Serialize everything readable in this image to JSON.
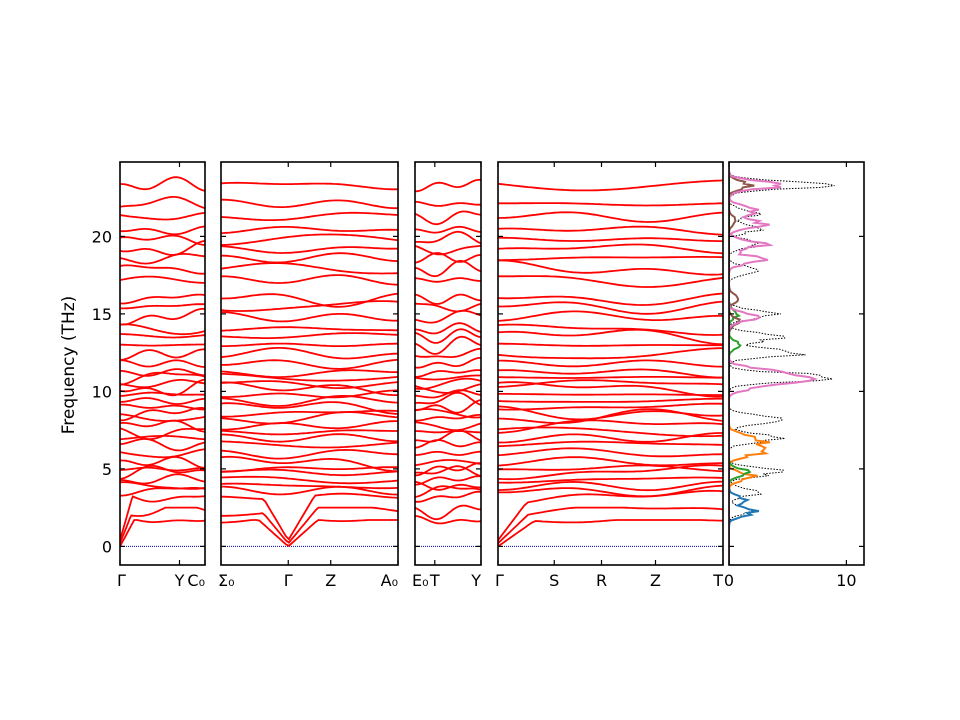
{
  "chart_data": [
    {
      "type": "line",
      "subtype": "phonon-band-structure",
      "ylabel": "Frequency (THz)",
      "ylim": [
        -1.2,
        24.8
      ],
      "yticks": [
        0,
        5,
        10,
        15,
        20
      ],
      "line_color": "#ff0000",
      "zero_line_color": "#0000aa",
      "segments": [
        {
          "x_ticks": [
            {
              "pos": 0.0,
              "label": "Γ"
            },
            {
              "pos": 0.7,
              "label": "Y"
            },
            {
              "pos": 1.0,
              "label": "C₀"
            }
          ]
        },
        {
          "x_ticks": [
            {
              "pos": 0.0,
              "label": "Σ₀"
            },
            {
              "pos": 0.38,
              "label": "Γ"
            },
            {
              "pos": 0.62,
              "label": "Z"
            },
            {
              "pos": 1.0,
              "label": "A₀"
            }
          ]
        },
        {
          "x_ticks": [
            {
              "pos": 0.0,
              "label": "E₀"
            },
            {
              "pos": 0.3,
              "label": "T"
            },
            {
              "pos": 1.0,
              "label": "Y"
            }
          ]
        },
        {
          "x_ticks": [
            {
              "pos": 0.0,
              "label": "Γ"
            },
            {
              "pos": 0.25,
              "label": "S"
            },
            {
              "pos": 0.46,
              "label": "R"
            },
            {
              "pos": 0.7,
              "label": "Z"
            },
            {
              "pos": 1.0,
              "label": "T"
            }
          ]
        }
      ],
      "gamma_frequencies": [
        1.7,
        2.3,
        3.2,
        3.6,
        3.9,
        4.3,
        4.8,
        5.0,
        5.4,
        6.0,
        6.6,
        7.0,
        7.4,
        7.8,
        8.3,
        8.6,
        9.0,
        9.4,
        9.8,
        10.2,
        10.5,
        10.9,
        11.2,
        11.8,
        12.4,
        13.0,
        13.6,
        14.0,
        14.8,
        15.5,
        16.0,
        17.2,
        17.9,
        18.6,
        19.2,
        19.8,
        20.4,
        21.3,
        22.1,
        23.3
      ]
    },
    {
      "type": "line",
      "subtype": "projected-density-of-states",
      "xlim": [
        0,
        11.5
      ],
      "xticks": [
        0,
        10
      ],
      "ylim": [
        -1.2,
        24.8
      ],
      "series": [
        {
          "color": "#000000",
          "style": "dotted",
          "peaks": [
            [
              2.3,
              2.0
            ],
            [
              3.5,
              3.0
            ],
            [
              4.8,
              5.4
            ],
            [
              7.0,
              5.5
            ],
            [
              8.2,
              6.0
            ],
            [
              10.9,
              10.8
            ],
            [
              12.5,
              7.5
            ],
            [
              13.5,
              5.5
            ],
            [
              15.0,
              5.2
            ],
            [
              17.8,
              3.0
            ],
            [
              19.5,
              3.2
            ],
            [
              20.5,
              3.0
            ],
            [
              21.5,
              2.8
            ],
            [
              23.3,
              8.3
            ]
          ]
        },
        {
          "color": "#1f77b4",
          "style": "solid",
          "peaks": [
            [
              2.2,
              2.5
            ],
            [
              3.0,
              1.5
            ]
          ]
        },
        {
          "color": "#ff7f0e",
          "style": "solid",
          "peaks": [
            [
              4.5,
              2.3
            ],
            [
              6.0,
              2.5
            ],
            [
              6.5,
              3.2
            ],
            [
              7.0,
              2.6
            ]
          ]
        },
        {
          "color": "#2ca02c",
          "style": "solid",
          "peaks": [
            [
              4.8,
              1.8
            ],
            [
              13.0,
              1.0
            ],
            [
              15.0,
              0.9
            ]
          ]
        },
        {
          "color": "#8c564b",
          "style": "solid",
          "peaks": [
            [
              14.5,
              1.0
            ],
            [
              16.0,
              1.0
            ],
            [
              21.0,
              0.8
            ],
            [
              23.3,
              2.0
            ]
          ]
        },
        {
          "color": "#e377c2",
          "style": "solid",
          "peaks": [
            [
              10.9,
              6.0
            ],
            [
              10.4,
              3.8
            ],
            [
              11.3,
              3.5
            ],
            [
              14.8,
              3.0
            ],
            [
              18.5,
              3.5
            ],
            [
              19.5,
              3.5
            ],
            [
              20.8,
              3.3
            ],
            [
              21.7,
              3.2
            ],
            [
              23.3,
              5.2
            ]
          ]
        }
      ]
    }
  ]
}
